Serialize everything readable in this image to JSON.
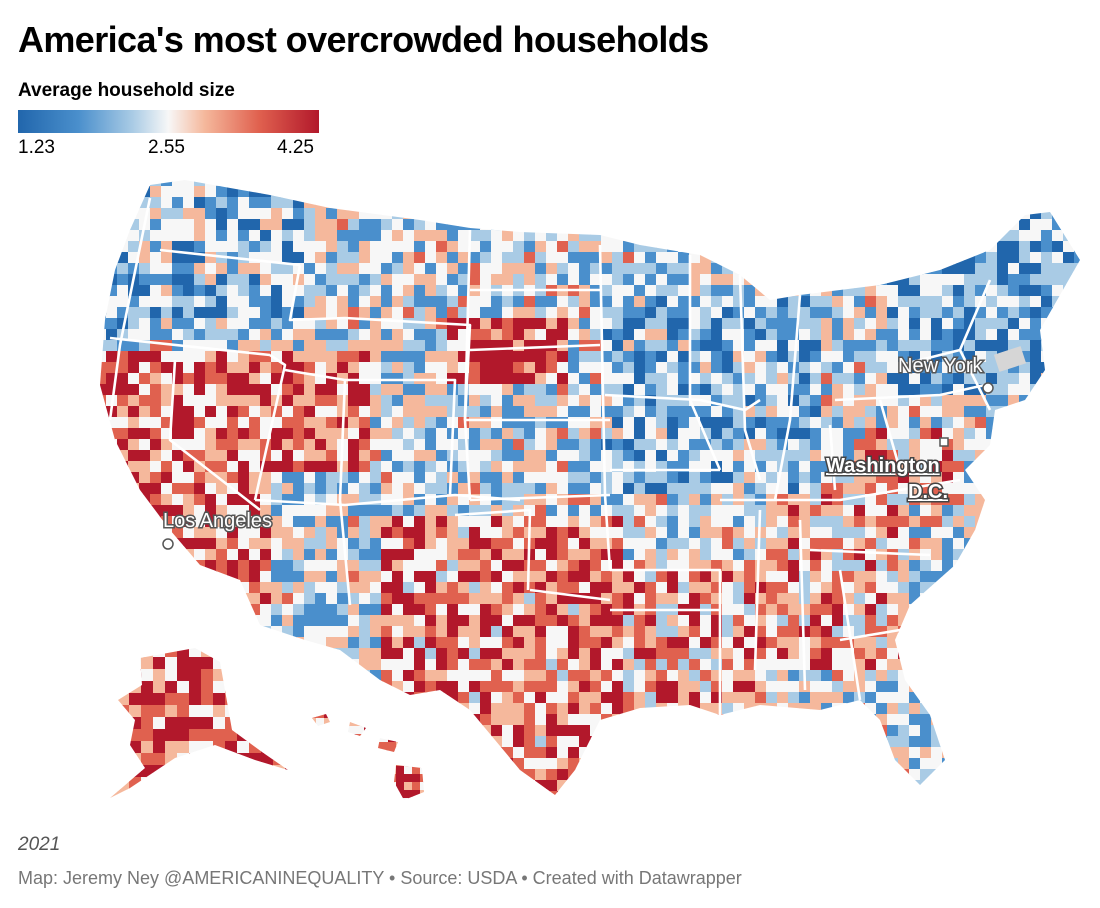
{
  "title": "America's most overcrowded households",
  "legend": {
    "title": "Average household size",
    "min": "1.23",
    "mid": "2.55",
    "max": "4.25",
    "colors": [
      "#2166ac",
      "#4a8fcc",
      "#a9cbe5",
      "#f7f7f7",
      "#f5b89c",
      "#e0614f",
      "#b2182b"
    ]
  },
  "map": {
    "cities": [
      {
        "name": "New York",
        "style": "plain"
      },
      {
        "name": "Washington D.C.",
        "style": "bold"
      },
      {
        "name": "Los Angeles",
        "style": "plain"
      }
    ]
  },
  "note": "2021",
  "source": "Map: Jeremy Ney @AMERICANINEQUALITY • Source: USDA • Created with Datawrapper"
}
